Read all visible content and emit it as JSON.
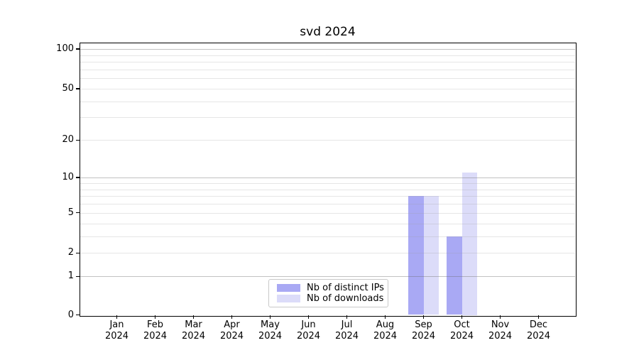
{
  "chart_data": {
    "type": "bar",
    "title": "svd 2024",
    "categories": [
      "Jan",
      "Feb",
      "Mar",
      "Apr",
      "May",
      "Jun",
      "Jul",
      "Aug",
      "Sep",
      "Oct",
      "Nov",
      "Dec"
    ],
    "x_tick_second_line": "2024",
    "series": [
      {
        "name": "Nb of distinct IPs",
        "color": "#a9a9f4",
        "values": [
          0,
          0,
          0,
          0,
          0,
          0,
          0,
          0,
          7,
          3,
          0,
          0
        ]
      },
      {
        "name": "Nb of downloads",
        "color": "#dcdcf9",
        "values": [
          0,
          0,
          0,
          0,
          0,
          0,
          0,
          0,
          7,
          11,
          0,
          0
        ]
      }
    ],
    "xlabel": "",
    "ylabel": "",
    "yscale": "log1p",
    "ylim": [
      0,
      110
    ],
    "y_tick_labels": [
      0,
      1,
      2,
      5,
      10,
      20,
      50,
      100
    ],
    "y_major_gridlines": [
      1,
      10,
      100
    ],
    "y_minor_gridlines": [
      2,
      3,
      4,
      5,
      6,
      7,
      8,
      9,
      20,
      30,
      40,
      50,
      60,
      70,
      80,
      90
    ],
    "grid": true,
    "legend_position": "lower center"
  },
  "colors": {
    "background": "#ffffff",
    "spine": "#000000",
    "major_grid": "#c6c6c6",
    "minor_grid": "#ebebeb",
    "legend_border": "#c9c9c9",
    "text": "#000000"
  }
}
